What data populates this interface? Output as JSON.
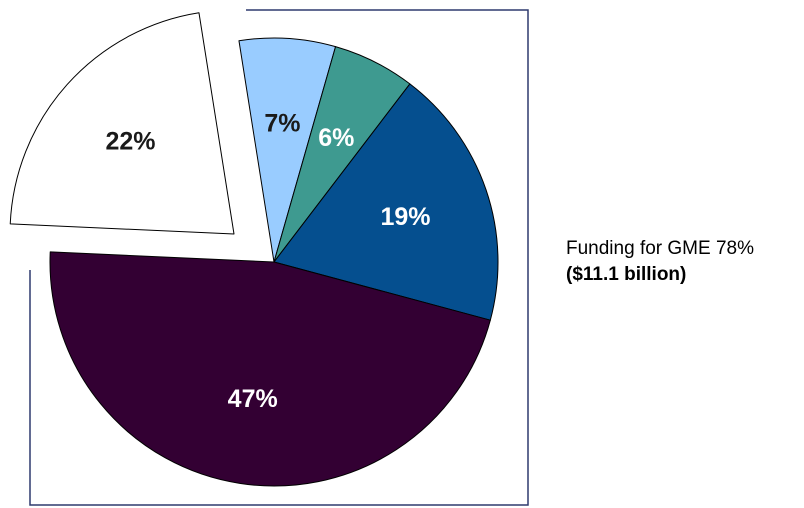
{
  "chart_data": {
    "type": "pie",
    "title": "",
    "slices": [
      {
        "label": "7%",
        "value": 7,
        "color": "#99ccff",
        "label_color": "#1a1a1a",
        "exploded": false
      },
      {
        "label": "6%",
        "value": 6,
        "color": "#3e9a90",
        "label_color": "#ffffff",
        "exploded": false
      },
      {
        "label": "19%",
        "value": 19,
        "color": "#054f8f",
        "label_color": "#ffffff",
        "exploded": false
      },
      {
        "label": "47%",
        "value": 47,
        "color": "#330033",
        "label_color": "#ffffff",
        "exploded": false
      },
      {
        "label": "22%",
        "value": 22,
        "color": "#ffffff",
        "label_color": "#1a1a1a",
        "exploded": true
      }
    ],
    "callout": {
      "line1": "Funding for GME 78%",
      "line2": "($11.1 billion)"
    }
  },
  "colors": {
    "slice_outline": "#000000",
    "frame": "#2f3a6e"
  }
}
